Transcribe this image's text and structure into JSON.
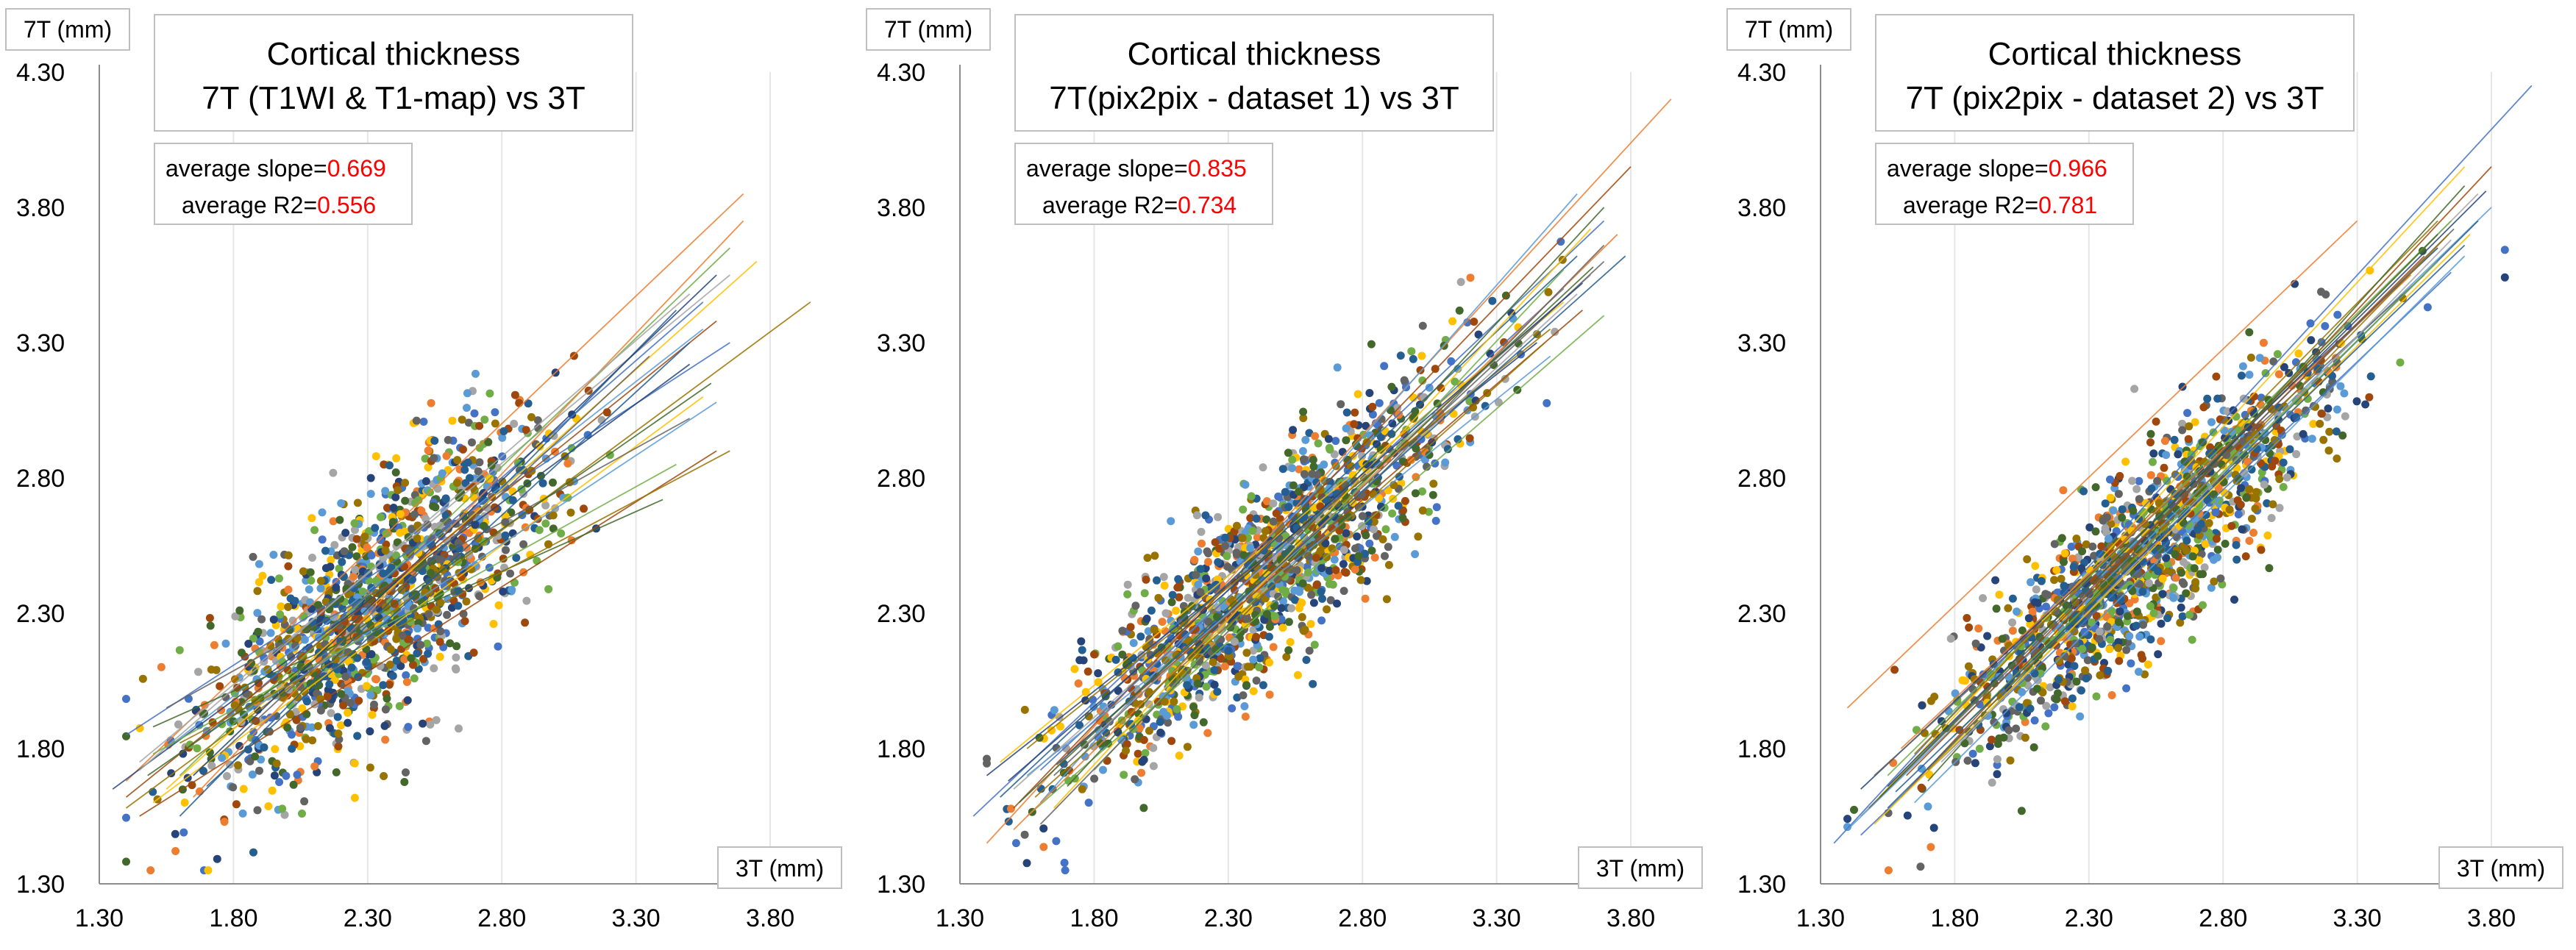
{
  "figure": {
    "layout": "three side-by-side scatter plots",
    "colors": {
      "background": "#ffffff",
      "axis": "#8c8c8c",
      "gridline": "#e6e6e6",
      "text": "#000000",
      "highlight": "#ff0000",
      "box_border": "#bfbfbf",
      "series_palette": [
        "#4472c4",
        "#ed7d31",
        "#a5a5a5",
        "#ffc000",
        "#5b9bd5",
        "#70ad47",
        "#264478",
        "#9e480e",
        "#636363",
        "#997300",
        "#255e91",
        "#43682b"
      ]
    }
  },
  "chart_data": [
    {
      "type": "scatter",
      "title_line1": "Cortical thickness",
      "title_line2": "7T (T1WI & T1-map) vs 3T",
      "xlabel": "3T (mm)",
      "ylabel": "7T (mm)",
      "xlim": [
        1.3,
        4.0
      ],
      "ylim": [
        1.3,
        4.3
      ],
      "xticks": [
        "1.30",
        "1.80",
        "2.30",
        "2.80",
        "3.30",
        "3.80"
      ],
      "yticks": [
        "1.30",
        "1.80",
        "2.30",
        "2.80",
        "3.30",
        "3.80",
        "4.30"
      ],
      "grid": "vertical",
      "stats": {
        "slope_label": "average slope=",
        "slope_value": "0.669",
        "r2_label": "average R2=",
        "r2_value": "0.556"
      },
      "average_slope": 0.669,
      "average_r2": 0.556,
      "n_series": 24,
      "points_per_series": 62,
      "point_cloud": {
        "center_x": 2.35,
        "center_y": 2.35,
        "sd_x": 0.33,
        "x_min": 1.4,
        "x_max": 3.9
      },
      "fit_lines": [
        [
          1.4,
          1.85,
          3.65,
          3.3
        ],
        [
          1.4,
          1.68,
          3.7,
          3.85
        ],
        [
          1.45,
          1.75,
          3.65,
          3.55
        ],
        [
          1.5,
          1.6,
          3.55,
          3.1
        ],
        [
          1.55,
          1.8,
          3.55,
          3.35
        ],
        [
          1.6,
          1.7,
          3.65,
          3.65
        ],
        [
          1.35,
          1.65,
          3.5,
          3.22
        ],
        [
          1.45,
          1.55,
          3.6,
          2.9
        ],
        [
          1.55,
          1.95,
          3.5,
          3.02
        ],
        [
          1.4,
          1.58,
          3.95,
          3.45
        ],
        [
          1.6,
          1.55,
          3.45,
          3.42
        ],
        [
          1.5,
          1.88,
          3.4,
          2.72
        ],
        [
          1.7,
          1.85,
          3.55,
          3.45
        ],
        [
          1.65,
          1.62,
          3.7,
          3.75
        ],
        [
          1.45,
          1.72,
          3.5,
          3.48
        ],
        [
          1.55,
          1.65,
          3.75,
          3.6
        ],
        [
          1.8,
          1.9,
          3.6,
          3.08
        ],
        [
          1.5,
          1.78,
          3.45,
          2.85
        ],
        [
          1.65,
          1.7,
          3.6,
          3.55
        ],
        [
          1.4,
          1.62,
          3.6,
          3.38
        ],
        [
          1.75,
          1.78,
          3.35,
          3.25
        ],
        [
          1.6,
          1.82,
          3.65,
          2.9
        ],
        [
          1.7,
          1.66,
          3.5,
          3.3
        ],
        [
          1.48,
          1.7,
          3.58,
          3.15
        ]
      ]
    },
    {
      "type": "scatter",
      "title_line1": "Cortical thickness",
      "title_line2": "7T(pix2pix - dataset 1) vs 3T",
      "xlabel": "3T (mm)",
      "ylabel": "7T (mm)",
      "xlim": [
        1.3,
        4.0
      ],
      "ylim": [
        1.3,
        4.3
      ],
      "xticks": [
        "1.30",
        "1.80",
        "2.30",
        "2.80",
        "3.30",
        "3.80"
      ],
      "yticks": [
        "1.30",
        "1.80",
        "2.30",
        "2.80",
        "3.30",
        "3.80",
        "4.30"
      ],
      "grid": "vertical",
      "stats": {
        "slope_label": "average slope=",
        "slope_value": "0.835",
        "r2_label": "average R2=",
        "r2_value": "0.734"
      },
      "average_slope": 0.835,
      "average_r2": 0.734,
      "n_series": 24,
      "points_per_series": 62,
      "point_cloud": {
        "center_x": 2.45,
        "center_y": 2.45,
        "sd_x": 0.35,
        "x_min": 1.4,
        "x_max": 3.95
      },
      "fit_lines": [
        [
          1.35,
          1.55,
          3.7,
          3.75
        ],
        [
          1.4,
          1.45,
          3.95,
          4.2
        ],
        [
          1.5,
          1.65,
          3.65,
          3.55
        ],
        [
          1.45,
          1.75,
          3.55,
          3.45
        ],
        [
          1.6,
          1.6,
          3.6,
          3.85
        ],
        [
          1.55,
          1.55,
          3.7,
          3.4
        ],
        [
          1.4,
          1.7,
          3.45,
          3.3
        ],
        [
          1.5,
          1.58,
          3.8,
          3.95
        ],
        [
          1.65,
          1.7,
          3.7,
          3.6
        ],
        [
          1.55,
          1.8,
          3.5,
          3.35
        ],
        [
          1.45,
          1.62,
          3.6,
          3.62
        ],
        [
          1.7,
          1.66,
          3.7,
          3.8
        ],
        [
          1.6,
          1.72,
          3.55,
          3.5
        ],
        [
          1.5,
          1.5,
          3.75,
          3.7
        ],
        [
          1.75,
          1.8,
          3.6,
          3.48
        ],
        [
          1.65,
          1.58,
          3.65,
          3.72
        ],
        [
          1.55,
          1.7,
          3.5,
          3.25
        ],
        [
          1.8,
          1.72,
          3.55,
          3.57
        ],
        [
          1.48,
          1.68,
          3.62,
          3.52
        ],
        [
          1.7,
          1.78,
          3.62,
          3.42
        ],
        [
          1.6,
          1.52,
          3.7,
          3.66
        ],
        [
          1.58,
          1.62,
          3.48,
          3.3
        ],
        [
          1.66,
          1.74,
          3.78,
          3.62
        ],
        [
          1.52,
          1.6,
          3.66,
          3.58
        ]
      ]
    },
    {
      "type": "scatter",
      "title_line1": "Cortical thickness",
      "title_line2": "7T (pix2pix - dataset 2) vs 3T",
      "xlabel": "3T (mm)",
      "ylabel": "7T (mm)",
      "xlim": [
        1.3,
        4.0
      ],
      "ylim": [
        1.3,
        4.3
      ],
      "xticks": [
        "1.30",
        "1.80",
        "2.30",
        "2.80",
        "3.30",
        "3.80"
      ],
      "yticks": [
        "1.30",
        "1.80",
        "2.30",
        "2.80",
        "3.30",
        "3.80",
        "4.30"
      ],
      "grid": "vertical",
      "stats": {
        "slope_label": "average slope=",
        "slope_value": "0.966",
        "r2_label": "average R2=",
        "r2_value": "0.781"
      },
      "average_slope": 0.966,
      "average_r2": 0.781,
      "n_series": 24,
      "points_per_series": 62,
      "point_cloud": {
        "center_x": 2.5,
        "center_y": 2.5,
        "sd_x": 0.36,
        "x_min": 1.4,
        "x_max": 3.85
      },
      "fit_lines": [
        [
          1.35,
          1.45,
          3.95,
          4.25
        ],
        [
          1.4,
          1.95,
          3.3,
          3.75
        ],
        [
          1.45,
          1.55,
          3.75,
          3.85
        ],
        [
          1.5,
          1.6,
          3.7,
          3.95
        ],
        [
          1.4,
          1.5,
          3.8,
          3.8
        ],
        [
          1.55,
          1.7,
          3.65,
          3.75
        ],
        [
          1.45,
          1.65,
          3.6,
          3.65
        ],
        [
          1.6,
          1.62,
          3.8,
          3.95
        ],
        [
          1.5,
          1.7,
          3.55,
          3.55
        ],
        [
          1.65,
          1.78,
          3.6,
          3.75
        ],
        [
          1.55,
          1.58,
          3.75,
          3.75
        ],
        [
          1.7,
          1.68,
          3.7,
          3.88
        ],
        [
          1.45,
          1.48,
          3.65,
          3.56
        ],
        [
          1.6,
          1.8,
          3.5,
          3.55
        ],
        [
          1.75,
          1.75,
          3.65,
          3.68
        ],
        [
          1.5,
          1.52,
          3.72,
          3.7
        ],
        [
          1.65,
          1.6,
          3.7,
          3.62
        ],
        [
          1.8,
          1.85,
          3.6,
          3.6
        ],
        [
          1.55,
          1.66,
          3.78,
          3.86
        ],
        [
          1.62,
          1.7,
          3.55,
          3.62
        ],
        [
          1.48,
          1.58,
          3.66,
          3.72
        ],
        [
          1.7,
          1.72,
          3.64,
          3.7
        ],
        [
          1.58,
          1.64,
          3.7,
          3.66
        ],
        [
          1.52,
          1.62,
          3.6,
          3.7
        ]
      ]
    }
  ]
}
